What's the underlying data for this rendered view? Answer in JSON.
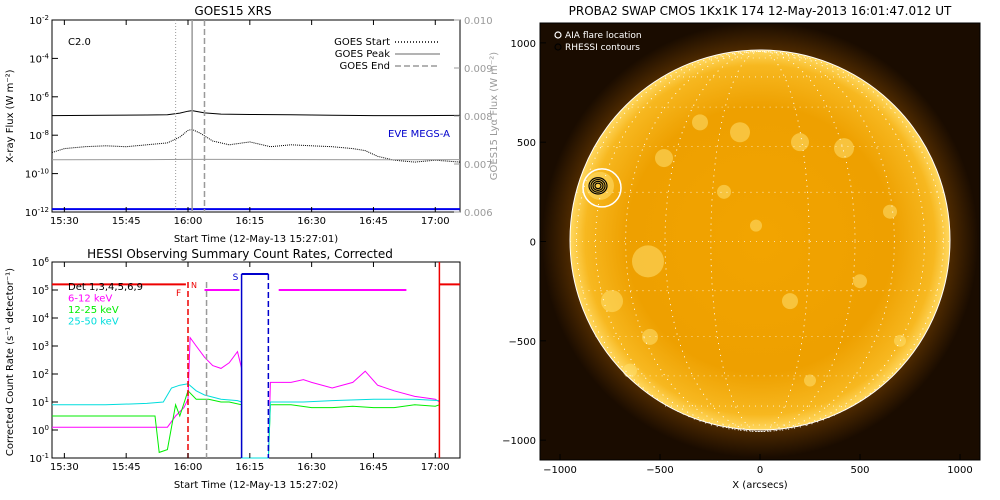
{
  "colors": {
    "text": "#000000",
    "goes_long": "#000000",
    "goes_short": "#000000",
    "lya": "#9a9a9a",
    "eve_label": "#0000cc",
    "eve_line": "#0000ee",
    "rhessi_ch1": "#ff00ff",
    "rhessi_ch2": "#00ee00",
    "rhessi_ch3": "#00dddd",
    "rhessi_att": "#ee0000",
    "rhessi_saa": "#0000cc",
    "goes_peak_line": "#9a9a9a",
    "goes_end_line": "#9a9a9a",
    "sun_disk": "#f0a000",
    "sun_bright": "#ffe070",
    "map_background": "#1a0c00",
    "contour": "#000000"
  },
  "chart_data": [
    {
      "type": "line",
      "title": "GOES15 XRS",
      "xlabel": "Start Time (12-May-13 15:27:01)",
      "ylabel": "X-ray Flux (W m⁻²)",
      "ylabel_right": "GOES15 Lyα Flux (W m⁻²)",
      "x_ticks": [
        "15:30",
        "15:45",
        "16:00",
        "16:15",
        "16:30",
        "16:45",
        "17:00"
      ],
      "x_tick_minutes": [
        30,
        45,
        60,
        75,
        90,
        105,
        120
      ],
      "xlim_minutes": [
        27,
        126
      ],
      "y_scale": "log",
      "ylim_log10": [
        -12,
        -2
      ],
      "y_ticks": [
        {
          "base": "10",
          "exp": "-2"
        },
        {
          "base": "10",
          "exp": "-4"
        },
        {
          "base": "10",
          "exp": "-6"
        },
        {
          "base": "10",
          "exp": "-8"
        },
        {
          "base": "10",
          "exp": "-10"
        },
        {
          "base": "10",
          "exp": "-12"
        }
      ],
      "y_tick_log10": [
        -2,
        -4,
        -6,
        -8,
        -10,
        -12
      ],
      "right_ticks": [
        "0.010",
        "0.009",
        "0.008",
        "0.007",
        "0.006"
      ],
      "right_tick_values": [
        0.01,
        0.009,
        0.008,
        0.007,
        0.006
      ],
      "right_lim": [
        0.006,
        0.01
      ],
      "flare_class": "C2.0",
      "legend": [
        {
          "label": "GOES Start",
          "style": "dotted"
        },
        {
          "label": "GOES Peak",
          "style": "solid"
        },
        {
          "label": "GOES End",
          "style": "dashed"
        }
      ],
      "vlines_minutes": {
        "start": 57,
        "peak": 61,
        "end": 64
      },
      "eve_label": "EVE MEGS-A",
      "series": [
        {
          "key": "long",
          "minutes": [
            27,
            40,
            50,
            55,
            58,
            60,
            61,
            62,
            64,
            68,
            75,
            85,
            95,
            105,
            115,
            126
          ],
          "log10": [
            -6.98,
            -6.96,
            -6.95,
            -6.93,
            -6.85,
            -6.75,
            -6.72,
            -6.76,
            -6.84,
            -6.9,
            -6.92,
            -6.94,
            -6.96,
            -6.98,
            -6.98,
            -6.97
          ]
        },
        {
          "key": "short",
          "minutes": [
            27,
            30,
            35,
            40,
            45,
            50,
            55,
            58,
            60,
            61,
            63,
            66,
            70,
            75,
            80,
            85,
            90,
            95,
            100,
            103,
            106,
            110,
            115,
            120,
            126
          ],
          "log10": [
            -8.9,
            -8.7,
            -8.6,
            -8.55,
            -8.6,
            -8.5,
            -8.4,
            -8.1,
            -7.75,
            -7.7,
            -7.9,
            -8.3,
            -8.5,
            -8.35,
            -8.6,
            -8.5,
            -8.55,
            -8.6,
            -8.7,
            -8.8,
            -9.1,
            -9.3,
            -9.4,
            -9.3,
            -9.4
          ]
        },
        {
          "key": "lya",
          "minutes": [
            27,
            50,
            60,
            70,
            90,
            110,
            126
          ],
          "log10": [
            -9.28,
            -9.27,
            -9.26,
            -9.26,
            -9.27,
            -9.28,
            -9.27
          ]
        },
        {
          "key": "eve",
          "minutes": [
            27,
            126
          ],
          "log10": [
            -11.85,
            -11.85
          ]
        }
      ]
    },
    {
      "type": "line",
      "title": "HESSI Observing Summary Count Rates, Corrected",
      "xlabel": "Start Time (12-May-13 15:27:02)",
      "ylabel": "Corrected Count Rate (s⁻¹ detector⁻¹)",
      "x_ticks": [
        "15:30",
        "15:45",
        "16:00",
        "16:15",
        "16:30",
        "16:45",
        "17:00"
      ],
      "x_tick_minutes": [
        30,
        45,
        60,
        75,
        90,
        105,
        120
      ],
      "xlim_minutes": [
        27,
        126
      ],
      "y_scale": "log",
      "ylim_log10": [
        -1,
        6
      ],
      "y_ticks": [
        {
          "base": "10",
          "exp": "6"
        },
        {
          "base": "10",
          "exp": "5"
        },
        {
          "base": "10",
          "exp": "4"
        },
        {
          "base": "10",
          "exp": "3"
        },
        {
          "base": "10",
          "exp": "2"
        },
        {
          "base": "10",
          "exp": "1"
        },
        {
          "base": "10",
          "exp": "0"
        },
        {
          "base": "10",
          "exp": "-1"
        }
      ],
      "y_tick_log10": [
        6,
        5,
        4,
        3,
        2,
        1,
        0,
        -1
      ],
      "legend": [
        {
          "label": "Det 1,3,4,5,6,9",
          "color_key": "text"
        },
        {
          "label": "6-12 keV",
          "color_key": "rhessi_ch1"
        },
        {
          "label": "12-25 keV",
          "color_key": "rhessi_ch2"
        },
        {
          "label": "25-50 keV",
          "color_key": "rhessi_ch3"
        }
      ],
      "markers": {
        "flare": "F",
        "night": "N",
        "saa": "S"
      },
      "vlines_minutes": {
        "flare_start": 60,
        "goes_end": 64.5,
        "saa_start": 73,
        "saa_end": 79.5,
        "night": 121
      },
      "series": [
        {
          "key": "ch1",
          "minutes": [
            27,
            50,
            55,
            57,
            59,
            60,
            60.5,
            62,
            64,
            66,
            68,
            70,
            72,
            73,
            73,
            79.5,
            80,
            85,
            88,
            90,
            95,
            100,
            103,
            106,
            110,
            115,
            120,
            121
          ],
          "log10": [
            0.1,
            0.1,
            0.1,
            0.5,
            0.8,
            1.1,
            3.3,
            3.0,
            2.6,
            2.3,
            2.2,
            2.4,
            2.8,
            2.2,
            -1,
            -1,
            1.7,
            1.7,
            1.8,
            1.7,
            1.5,
            1.7,
            2.1,
            1.6,
            1.4,
            1.2,
            1.1,
            1.0
          ]
        },
        {
          "key": "ch2",
          "minutes": [
            27,
            52,
            53,
            55,
            57,
            58,
            60,
            62,
            65,
            68,
            70,
            73,
            73,
            79.5,
            80,
            85,
            90,
            95,
            100,
            105,
            110,
            115,
            120,
            121
          ],
          "log10": [
            0.5,
            0.5,
            -0.8,
            -0.7,
            0.9,
            0.5,
            1.4,
            1.1,
            1.1,
            1.0,
            1.0,
            0.9,
            -1,
            -1,
            0.9,
            0.9,
            0.8,
            0.8,
            0.85,
            0.8,
            0.8,
            0.9,
            0.85,
            0.9
          ]
        },
        {
          "key": "ch3",
          "minutes": [
            27,
            40,
            50,
            54,
            56,
            58,
            60,
            62,
            64,
            68,
            72,
            73,
            73,
            79.5,
            80,
            88,
            95,
            105,
            115,
            121
          ],
          "log10": [
            0.9,
            0.9,
            0.95,
            1.0,
            1.5,
            1.6,
            1.65,
            1.4,
            1.25,
            1.1,
            1.05,
            1.0,
            -1,
            -1,
            1.0,
            1.0,
            1.05,
            1.1,
            1.1,
            1.05
          ]
        },
        {
          "key": "att",
          "minutes": [
            27,
            59.5
          ],
          "log10": [
            5.2,
            5.2
          ]
        },
        {
          "key": "att2",
          "minutes": [
            121,
            126
          ],
          "log10": [
            5.2,
            5.2
          ]
        },
        {
          "key": "ch1_top",
          "minutes": [
            64,
            72.5
          ],
          "log10": [
            5.0,
            5.0
          ]
        },
        {
          "key": "ch1_top2",
          "minutes": [
            82,
            113
          ],
          "log10": [
            5.0,
            5.0
          ]
        }
      ]
    },
    {
      "type": "heatmap",
      "title": "PROBA2 SWAP CMOS 1Kx1K 174 12-May-2013 16:01:47.012 UT",
      "xlabel": "X (arcsecs)",
      "ylabel": "",
      "x_ticks": [
        "−1000",
        "−500",
        "0",
        "500",
        "1000"
      ],
      "x_tick_values": [
        -1000,
        -500,
        0,
        500,
        1000
      ],
      "y_ticks": [
        "1000",
        "500",
        "0",
        "−500",
        "−1000"
      ],
      "y_tick_values": [
        1000,
        500,
        0,
        -500,
        -1000
      ],
      "xlim": [
        -1100,
        1100
      ],
      "ylim": [
        -1100,
        1100
      ],
      "solar_radius_arcsec": 950,
      "aia_flare_location": {
        "x": -790,
        "y": 270,
        "radius_arcsec": 95
      },
      "rhessi_contour_center": {
        "x": -810,
        "y": 280
      },
      "legend": [
        {
          "label": "AIA flare location",
          "symbol": "circle-open",
          "color_key": "sun_bright"
        },
        {
          "label": "RHESSI contours",
          "symbol": "circle-open",
          "color_key": "contour"
        }
      ]
    }
  ]
}
